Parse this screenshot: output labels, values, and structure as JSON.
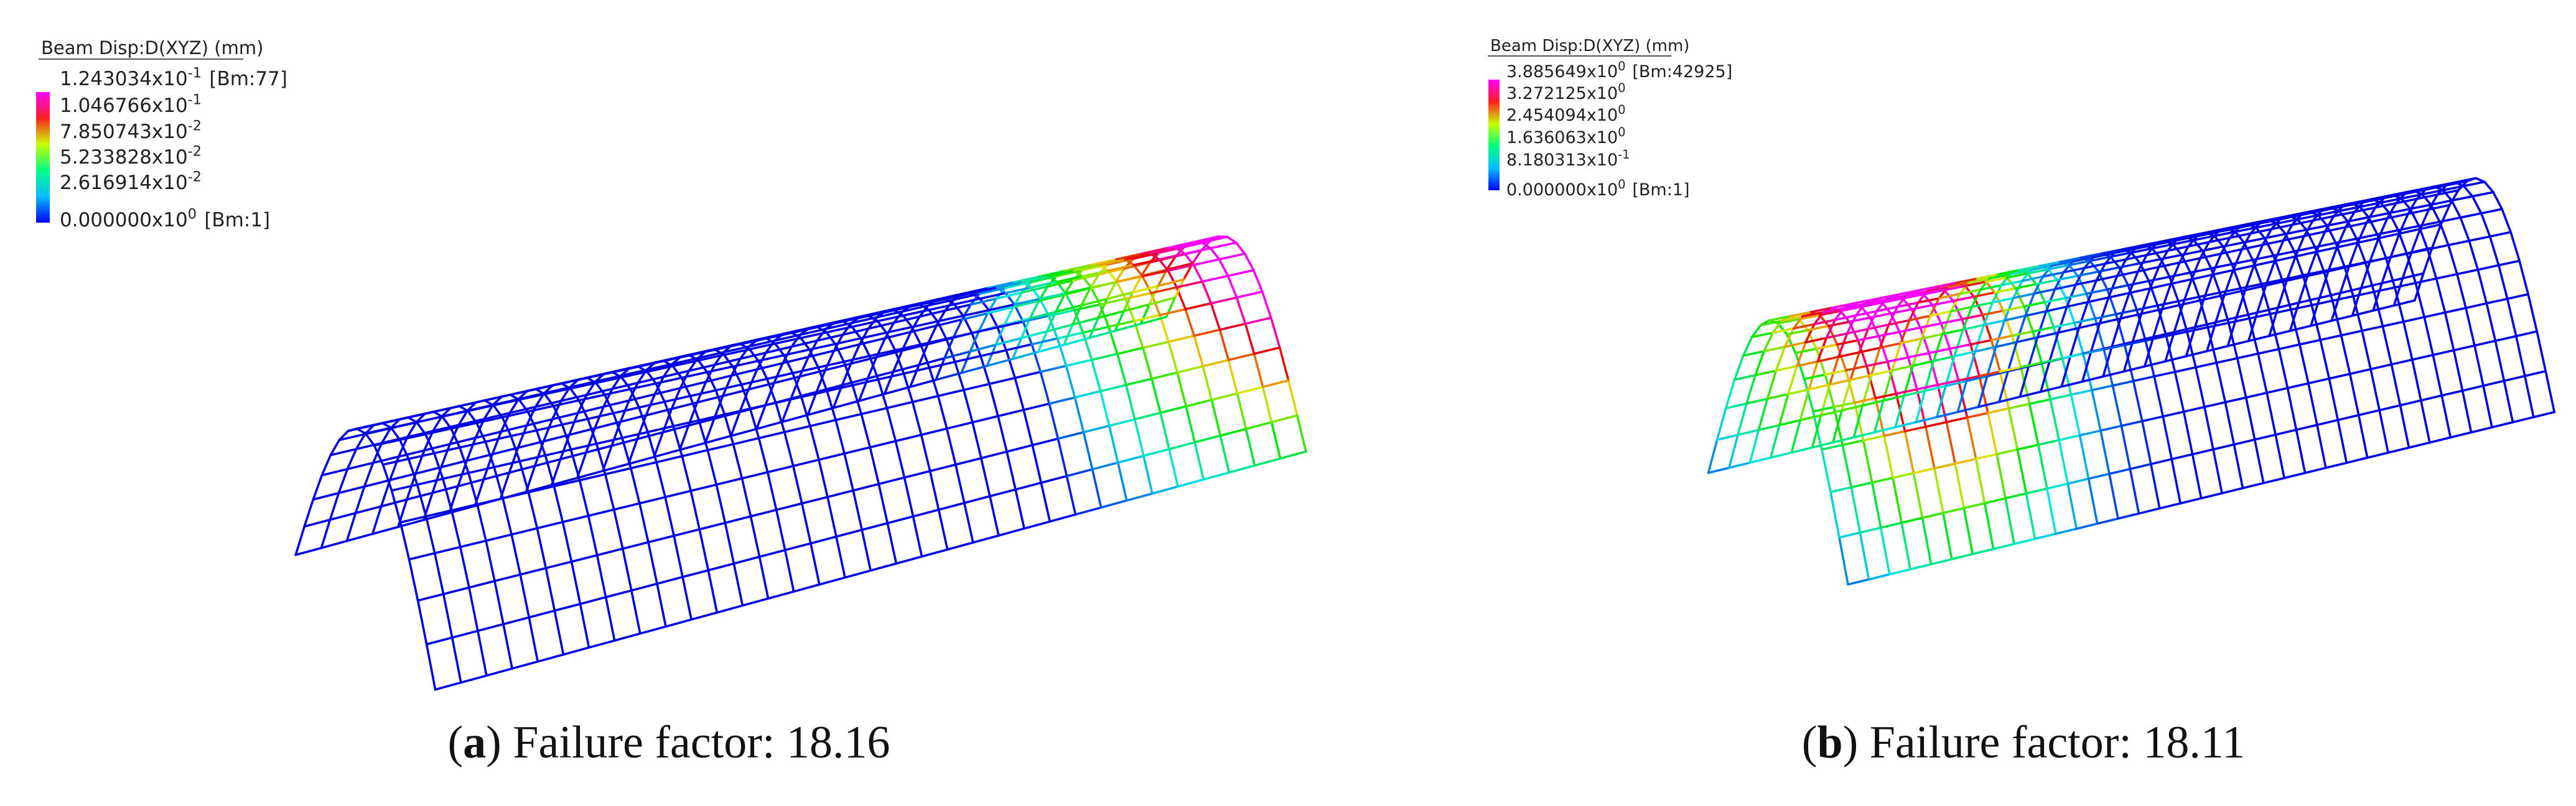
{
  "panels": [
    {
      "legend": {
        "title": "Beam Disp:D(XYZ)  (mm)",
        "entries": [
          {
            "mantissa": "1.243034x10",
            "exponent": "-1",
            "note": "[Bm:77]"
          },
          {
            "mantissa": "1.046766x10",
            "exponent": "-1"
          },
          {
            "mantissa": "7.850743x10",
            "exponent": "-2"
          },
          {
            "mantissa": "5.233828x10",
            "exponent": "-2"
          },
          {
            "mantissa": "2.616914x10",
            "exponent": "-2"
          },
          {
            "mantissa": "0.000000x10",
            "exponent": "0",
            "note": "[Bm:1]"
          }
        ]
      },
      "caption": [
        "(",
        "a",
        ") Failure factor: 18.16"
      ]
    },
    {
      "legend": {
        "title": "Beam Disp:D(XYZ)  (mm)",
        "entries": [
          {
            "mantissa": "3.885649x10",
            "exponent": "0",
            "note": "[Bm:42925]"
          },
          {
            "mantissa": "3.272125x10",
            "exponent": "0"
          },
          {
            "mantissa": "2.454094x10",
            "exponent": "0"
          },
          {
            "mantissa": "1.636063x10",
            "exponent": "0"
          },
          {
            "mantissa": "8.180313x10",
            "exponent": "-1"
          },
          {
            "mantissa": "0.000000x10",
            "exponent": "0",
            "note": "[Bm:1]"
          }
        ]
      },
      "caption": [
        "(",
        "b",
        ") Failure factor: 18.11"
      ]
    }
  ]
}
